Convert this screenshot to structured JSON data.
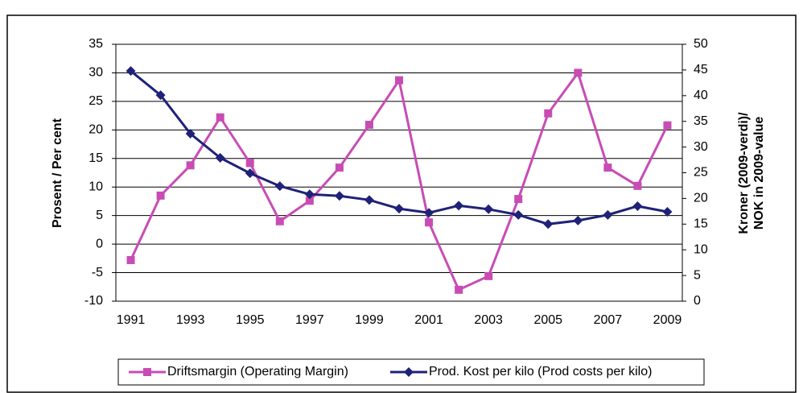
{
  "chart_data": {
    "type": "line",
    "x": [
      1991,
      1992,
      1993,
      1994,
      1995,
      1996,
      1997,
      1998,
      1999,
      2000,
      2001,
      2002,
      2003,
      2004,
      2005,
      2006,
      2007,
      2008,
      2009
    ],
    "xlim": [
      1990.5,
      2009.5
    ],
    "xticks": [
      1991,
      1993,
      1995,
      1997,
      1999,
      2001,
      2003,
      2005,
      2007,
      2009
    ],
    "ylim": [
      -10,
      35
    ],
    "yticks": [
      -10,
      -5,
      0,
      5,
      10,
      15,
      20,
      25,
      30,
      35
    ],
    "y2lim": [
      0,
      50
    ],
    "y2ticks": [
      0,
      5,
      10,
      15,
      20,
      25,
      30,
      35,
      40,
      45,
      50
    ],
    "ylabel": "Prosent / Per cent",
    "y2label": [
      "Kroner (2009-verdi)/",
      "NOK in 2009-value"
    ],
    "grid": true,
    "legend": "bottom",
    "series": [
      {
        "name": "Driftsmargin (Operating Margin)",
        "color": "#c84cb4",
        "marker": "square",
        "values": [
          -2.8,
          8.5,
          13.8,
          22.2,
          14.2,
          4,
          7.6,
          13.4,
          20.9,
          28.7,
          3.8,
          -8,
          -5.6,
          7.9,
          22.9,
          30,
          13.4,
          10.2,
          20.8
        ]
      },
      {
        "name": "Prod. Kost per kilo (Prod costs per kilo)",
        "color": "#1f2278",
        "marker": "diamond",
        "axis": "y2",
        "values": [
          44.8,
          40.1,
          32.6,
          27.9,
          24.9,
          22.4,
          20.8,
          20.5,
          19.7,
          18,
          17.2,
          18.6,
          17.9,
          16.8,
          15,
          15.7,
          16.8,
          18.5,
          17.4
        ]
      }
    ]
  }
}
